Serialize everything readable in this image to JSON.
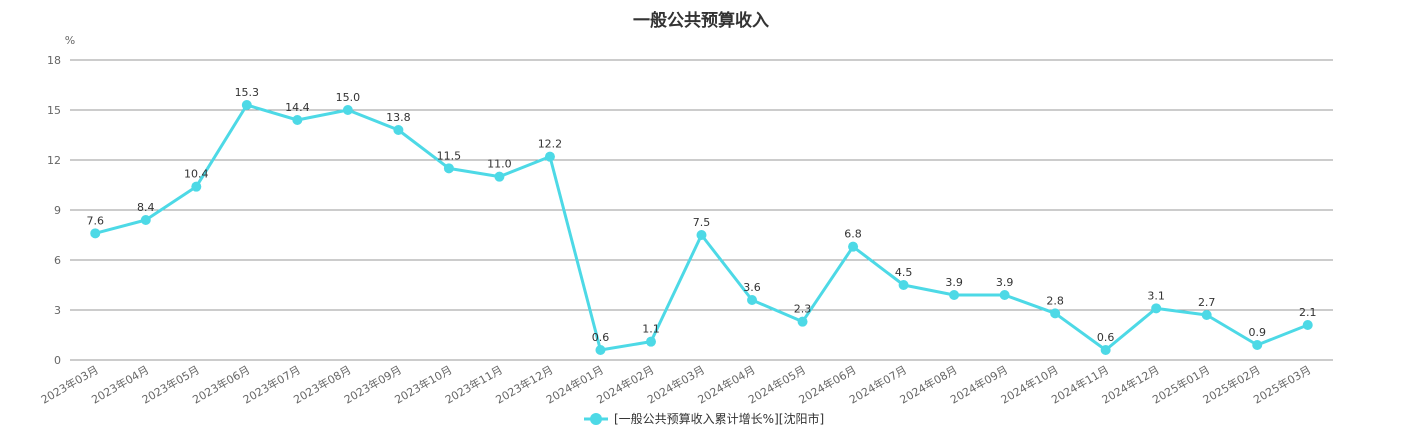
{
  "chart_data": {
    "type": "line",
    "title": "一般公共预算收入",
    "ylabel": "%",
    "xlabel": "",
    "ylim": [
      0,
      18
    ],
    "yticks": [
      0,
      3,
      6,
      9,
      12,
      15,
      18
    ],
    "grid": true,
    "legend_position": "bottom-center",
    "categories": [
      "2023年03月",
      "2023年04月",
      "2023年05月",
      "2023年06月",
      "2023年07月",
      "2023年08月",
      "2023年09月",
      "2023年10月",
      "2023年11月",
      "2023年12月",
      "2024年01月",
      "2024年02月",
      "2024年03月",
      "2024年04月",
      "2024年05月",
      "2024年06月",
      "2024年07月",
      "2024年08月",
      "2024年09月",
      "2024年10月",
      "2024年11月",
      "2024年12月",
      "2025年01月",
      "2025年02月",
      "2025年03月"
    ],
    "series": [
      {
        "name": "[一般公共预算收入累计增长%][沈阳市]",
        "color": "#4dd9e6",
        "values": [
          7.6,
          8.4,
          10.4,
          15.3,
          14.4,
          15.0,
          13.8,
          11.5,
          11.0,
          12.2,
          0.6,
          1.1,
          7.5,
          3.6,
          2.3,
          6.8,
          4.5,
          3.9,
          3.9,
          2.8,
          0.6,
          3.1,
          2.7,
          0.9,
          2.1
        ],
        "labels": [
          "7.6",
          "8.4",
          "10.4",
          "15.3",
          "14.4",
          "15.0",
          "13.8",
          "11.5",
          "11.0",
          "12.2",
          "0.6",
          "1.1",
          "7.5",
          "3.6",
          "2.3",
          "6.8",
          "4.5",
          "3.9",
          "3.9",
          "2.8",
          "0.6",
          "3.1",
          "2.7",
          "0.9",
          "2.1"
        ]
      }
    ]
  }
}
